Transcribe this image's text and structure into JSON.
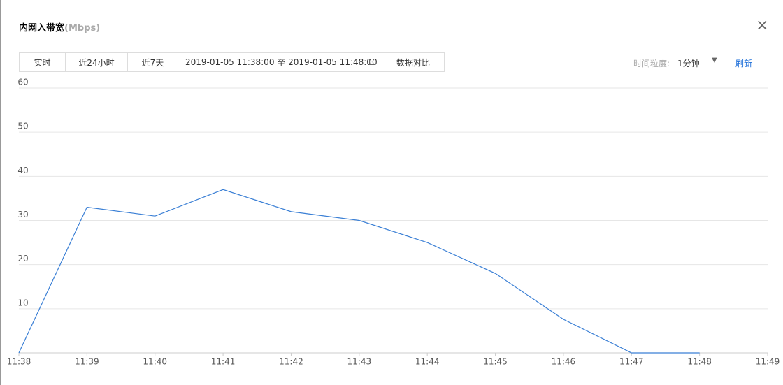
{
  "header": {
    "title": "内网入带宽",
    "unit": "(Mbps)"
  },
  "toolbar": {
    "buttons": [
      "实时",
      "近24小时",
      "近7天"
    ],
    "date_start": "2019-01-05 11:38:00",
    "date_sep": "至",
    "date_end": "2019-01-05 11:48:00",
    "compare": "数据对比",
    "granularity_label": "时间粒度:",
    "granularity": "1分钟",
    "refresh": "刷新"
  },
  "chart_data": {
    "type": "line",
    "categories": [
      "11:38",
      "11:39",
      "11:40",
      "11:41",
      "11:42",
      "11:43",
      "11:44",
      "11:45",
      "11:46",
      "11:47",
      "11:48",
      "11:49"
    ],
    "series": [
      {
        "name": "内网入带宽",
        "color": "#3a7fd5",
        "values": [
          0,
          33,
          31,
          37,
          32,
          30,
          25,
          18,
          7.6,
          0,
          0,
          null
        ]
      }
    ],
    "ylim": [
      0,
      60
    ],
    "yticks": [
      10,
      20,
      30,
      40,
      50,
      60
    ],
    "grid": true
  }
}
